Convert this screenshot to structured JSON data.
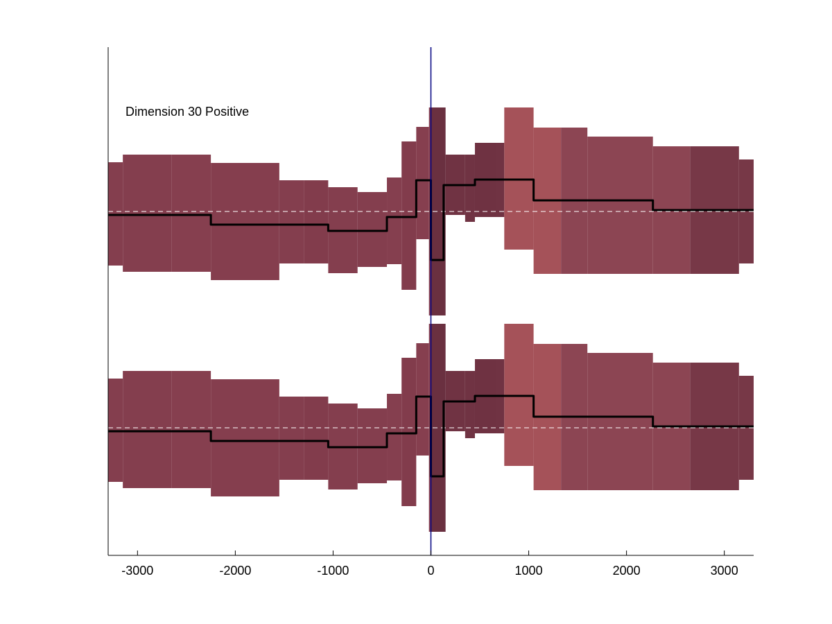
{
  "chart_data": {
    "type": "area",
    "annotation": "Dimension 30 Positive",
    "xlim": [
      -3300,
      3300
    ],
    "xticks": [
      -3000,
      -2000,
      -1000,
      0,
      1000,
      2000,
      3000
    ],
    "xtick_labels": [
      "-3000",
      "-2000",
      "-1000",
      "0",
      "1000",
      "2000",
      "3000"
    ],
    "yaxis_visible": false,
    "zero_line_x": 0,
    "band_segments": [
      {
        "x0": -3300,
        "x1": -3150,
        "upper": 0.71,
        "lower": -0.78,
        "color": "#843e4e"
      },
      {
        "x0": -3150,
        "x1": -2650,
        "upper": 0.82,
        "lower": -0.87,
        "color": "#843e4e"
      },
      {
        "x0": -2650,
        "x1": -2250,
        "upper": 0.82,
        "lower": -0.87,
        "color": "#863f4f"
      },
      {
        "x0": -2250,
        "x1": -1550,
        "upper": 0.7,
        "lower": -0.99,
        "color": "#853e4e"
      },
      {
        "x0": -1550,
        "x1": -1300,
        "upper": 0.45,
        "lower": -0.75,
        "color": "#843e4e"
      },
      {
        "x0": -1300,
        "x1": -1050,
        "upper": 0.45,
        "lower": -0.75,
        "color": "#823c4c"
      },
      {
        "x0": -1050,
        "x1": -750,
        "upper": 0.35,
        "lower": -0.89,
        "color": "#843e4e"
      },
      {
        "x0": -750,
        "x1": -450,
        "upper": 0.28,
        "lower": -0.8,
        "color": "#843e4e"
      },
      {
        "x0": -450,
        "x1": -300,
        "upper": 0.49,
        "lower": -0.76,
        "color": "#853f4f"
      },
      {
        "x0": -300,
        "x1": -150,
        "upper": 1.01,
        "lower": -1.13,
        "color": "#823c4c"
      },
      {
        "x0": -150,
        "x1": -20,
        "upper": 1.22,
        "lower": -0.4,
        "color": "#863f4f"
      },
      {
        "x0": -20,
        "x1": 0,
        "upper": 1.5,
        "lower": -1.5,
        "color": "#863f4f"
      },
      {
        "x0": 0,
        "x1": 150,
        "upper": 1.5,
        "lower": -1.5,
        "color": "#6a3040"
      },
      {
        "x0": 150,
        "x1": 350,
        "upper": 0.82,
        "lower": -0.05,
        "color": "#703343"
      },
      {
        "x0": 350,
        "x1": 450,
        "upper": 0.82,
        "lower": -0.15,
        "color": "#703343"
      },
      {
        "x0": 450,
        "x1": 670,
        "upper": 0.99,
        "lower": -0.08,
        "color": "#6f3242"
      },
      {
        "x0": 670,
        "x1": 750,
        "upper": 0.99,
        "lower": -0.08,
        "color": "#703343"
      },
      {
        "x0": 750,
        "x1": 1050,
        "upper": 1.5,
        "lower": -0.55,
        "color": "#a55259"
      },
      {
        "x0": 1050,
        "x1": 1330,
        "upper": 1.21,
        "lower": -0.9,
        "color": "#a55259"
      },
      {
        "x0": 1330,
        "x1": 1600,
        "upper": 1.21,
        "lower": -0.9,
        "color": "#8c4553"
      },
      {
        "x0": 1600,
        "x1": 2270,
        "upper": 1.08,
        "lower": -0.9,
        "color": "#8c4553"
      },
      {
        "x0": 2270,
        "x1": 2650,
        "upper": 0.94,
        "lower": -0.9,
        "color": "#8c4553"
      },
      {
        "x0": 2650,
        "x1": 3150,
        "upper": 0.94,
        "lower": -0.9,
        "color": "#773847"
      },
      {
        "x0": 3150,
        "x1": 3300,
        "upper": 0.75,
        "lower": -0.75,
        "color": "#773847"
      }
    ],
    "mean_line": [
      [
        -3300,
        -0.05
      ],
      [
        -2250,
        -0.05
      ],
      [
        -2250,
        -0.19
      ],
      [
        -1050,
        -0.19
      ],
      [
        -1050,
        -0.28
      ],
      [
        -450,
        -0.28
      ],
      [
        -450,
        -0.08
      ],
      [
        -150,
        -0.08
      ],
      [
        -150,
        0.45
      ],
      [
        -20,
        0.45
      ],
      [
        -20,
        0.45
      ],
      [
        0,
        0.45
      ],
      [
        0,
        -0.7
      ],
      [
        130,
        -0.7
      ],
      [
        130,
        0.38
      ],
      [
        450,
        0.38
      ],
      [
        450,
        0.46
      ],
      [
        1050,
        0.46
      ],
      [
        1050,
        0.16
      ],
      [
        2270,
        0.16
      ],
      [
        2270,
        0.02
      ],
      [
        3300,
        0.02
      ]
    ],
    "panels": [
      {
        "name": "top",
        "center_y": 305,
        "scale": 100
      },
      {
        "name": "bottom",
        "center_y": 617,
        "scale": 100
      }
    ],
    "colors": {
      "axis": "#000000",
      "mean_line": "#000000",
      "zero_line": "#000080",
      "baseline_dash": "#ffffff"
    }
  }
}
